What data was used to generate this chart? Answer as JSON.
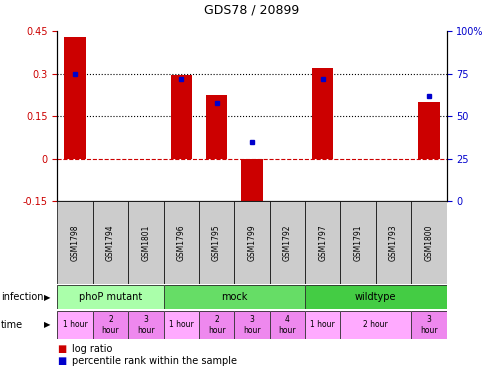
{
  "title": "GDS78 / 20899",
  "samples": [
    "GSM1798",
    "GSM1794",
    "GSM1801",
    "GSM1796",
    "GSM1795",
    "GSM1799",
    "GSM1792",
    "GSM1797",
    "GSM1791",
    "GSM1793",
    "GSM1800"
  ],
  "log_ratio": [
    0.43,
    0.0,
    0.0,
    0.295,
    0.225,
    -0.175,
    0.0,
    0.32,
    0.0,
    0.0,
    0.2
  ],
  "percentile": [
    75,
    0,
    0,
    72,
    58,
    35,
    0,
    72,
    0,
    0,
    62
  ],
  "ylim_left": [
    -0.15,
    0.45
  ],
  "ylim_right": [
    0,
    100
  ],
  "yticks_left": [
    -0.15,
    0,
    0.15,
    0.3,
    0.45
  ],
  "yticks_right": [
    0,
    25,
    50,
    75,
    100
  ],
  "ytick_labels_left": [
    "-0.15",
    "0",
    "0.15",
    "0.3",
    "0.45"
  ],
  "ytick_labels_right": [
    "0",
    "25",
    "50",
    "75",
    "100%"
  ],
  "hlines": [
    0.3,
    0.15
  ],
  "bar_color": "#cc0000",
  "dot_color": "#0000cc",
  "zero_line_color": "#cc0000",
  "hline_color": "#000000",
  "infection_groups": [
    {
      "label": "phoP mutant",
      "start": 0,
      "end": 3,
      "color": "#aaffaa"
    },
    {
      "label": "mock",
      "start": 3,
      "end": 7,
      "color": "#66dd66"
    },
    {
      "label": "wildtype",
      "start": 7,
      "end": 11,
      "color": "#44cc44"
    }
  ],
  "time_spans": [
    {
      "start": 0,
      "end": 1,
      "label": "1 hour",
      "color": "#ffaaff"
    },
    {
      "start": 1,
      "end": 2,
      "label": "2\nhour",
      "color": "#ee88ee"
    },
    {
      "start": 2,
      "end": 3,
      "label": "3\nhour",
      "color": "#ee88ee"
    },
    {
      "start": 3,
      "end": 4,
      "label": "1 hour",
      "color": "#ffaaff"
    },
    {
      "start": 4,
      "end": 5,
      "label": "2\nhour",
      "color": "#ee88ee"
    },
    {
      "start": 5,
      "end": 6,
      "label": "3\nhour",
      "color": "#ee88ee"
    },
    {
      "start": 6,
      "end": 7,
      "label": "4\nhour",
      "color": "#ee88ee"
    },
    {
      "start": 7,
      "end": 8,
      "label": "1 hour",
      "color": "#ffaaff"
    },
    {
      "start": 8,
      "end": 10,
      "label": "2 hour",
      "color": "#ffaaff"
    },
    {
      "start": 10,
      "end": 11,
      "label": "3\nhour",
      "color": "#ee88ee"
    }
  ],
  "legend_items": [
    {
      "color": "#cc0000",
      "label": "log ratio"
    },
    {
      "color": "#0000cc",
      "label": "percentile rank within the sample"
    }
  ],
  "gsm_bg_color": "#cccccc",
  "frame_color": "#000000"
}
